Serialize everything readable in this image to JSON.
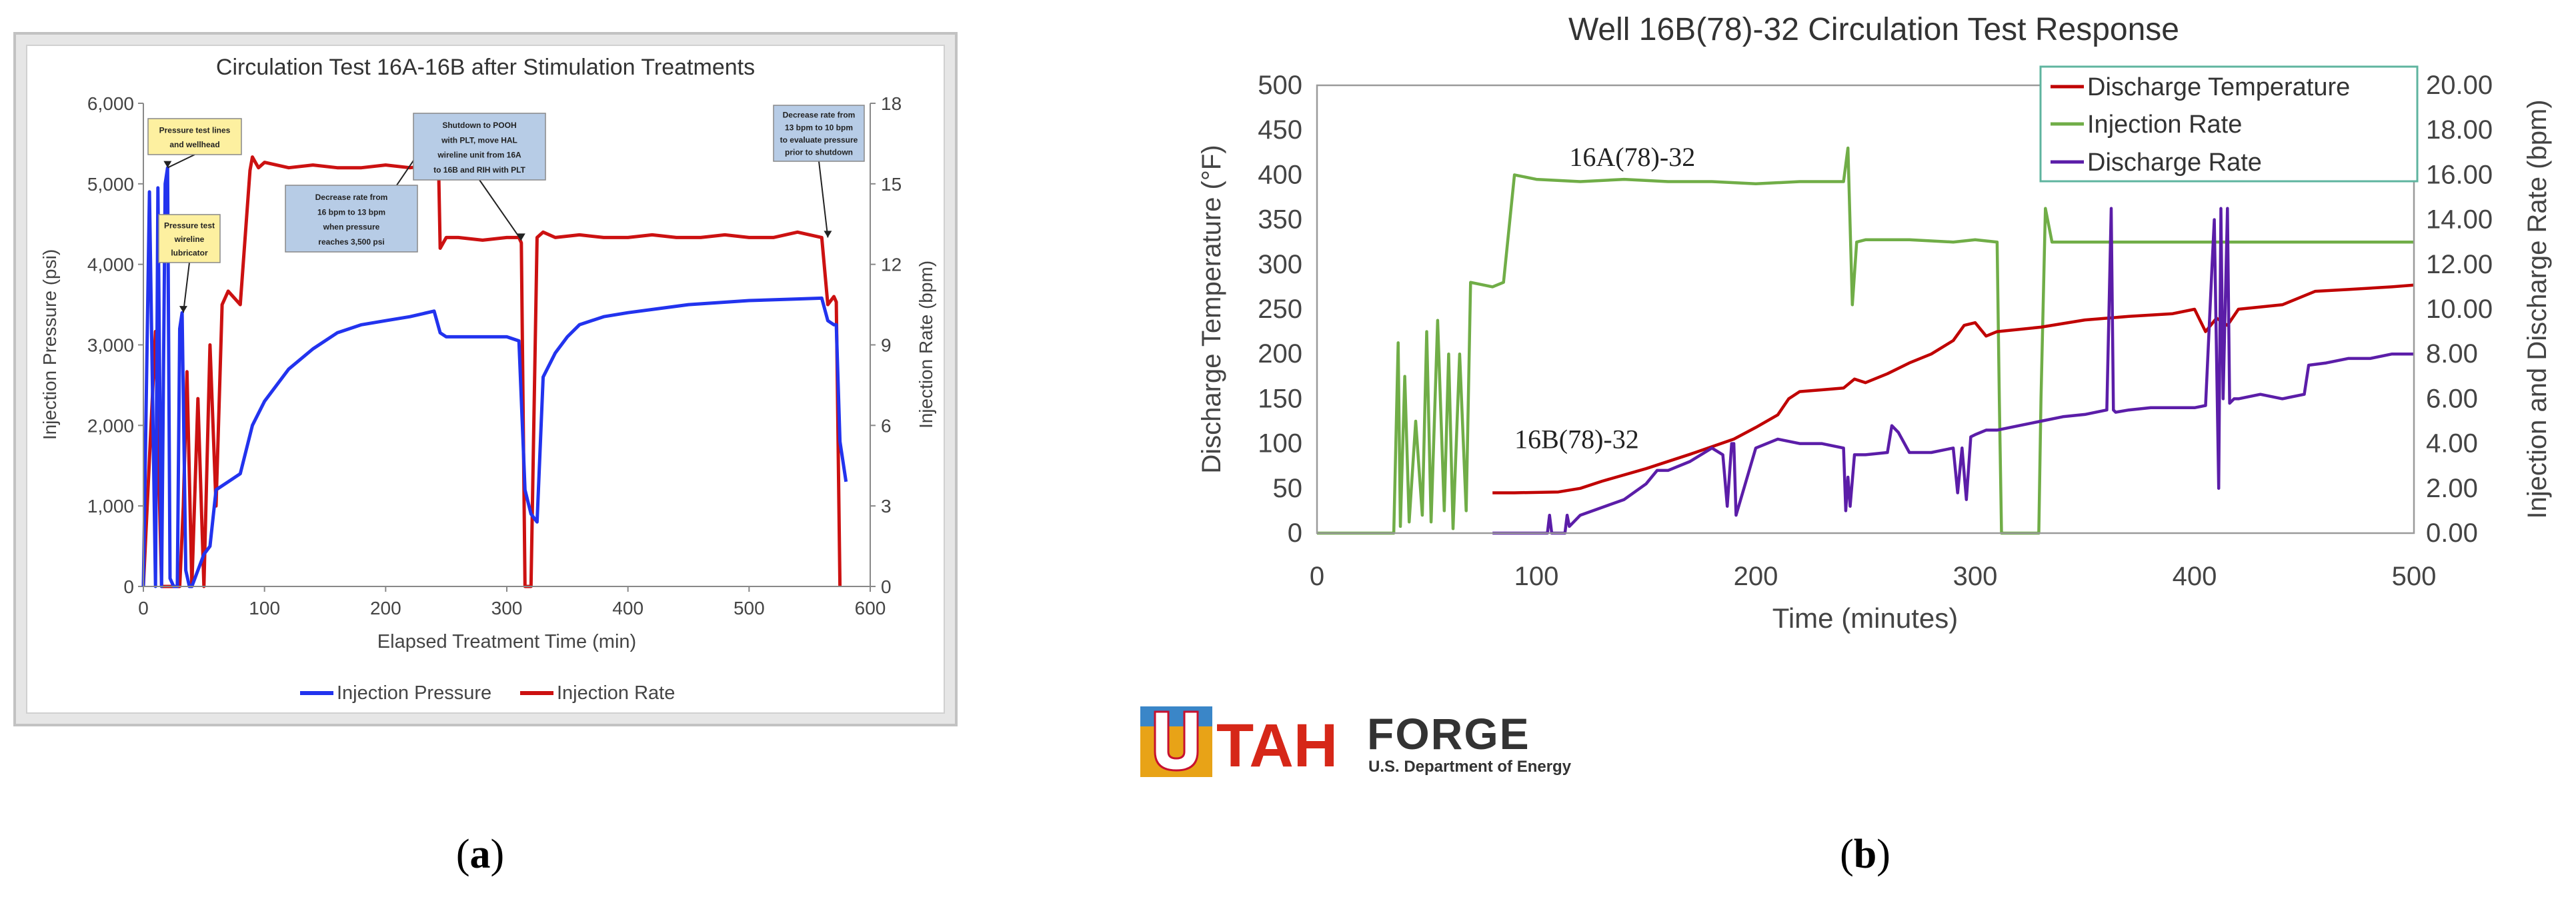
{
  "panels": [
    {
      "label_open": "(",
      "label_letter": "a",
      "label_close": ")"
    },
    {
      "label_open": "(",
      "label_letter": "b",
      "label_close": ")"
    }
  ],
  "logo": {
    "main_u": "U",
    "main_tah": "TAH",
    "main_forge": "FORGE",
    "sub": "U.S. Department of Energy"
  },
  "chart_data": [
    {
      "type": "line",
      "title": "Circulation Test 16A-16B after Stimulation Treatments",
      "xlabel": "Elapsed Treatment Time (min)",
      "ylabel": "Injection Pressure (psi)",
      "y2label": "Injection Rate (bpm)",
      "xlim": [
        0,
        600
      ],
      "ylim": [
        0,
        6000
      ],
      "y2lim": [
        0,
        18
      ],
      "x_ticks": [
        "0",
        "100",
        "200",
        "300",
        "400",
        "500",
        "600"
      ],
      "y_ticks": [
        "0",
        "1,000",
        "2,000",
        "3,000",
        "4,000",
        "5,000",
        "6,000"
      ],
      "y2_ticks": [
        "0",
        "3",
        "6",
        "9",
        "12",
        "15",
        "18"
      ],
      "legend_position": "bottom",
      "legend": [
        "Injection Pressure",
        "Injection Rate"
      ],
      "colors": {
        "pressure": "#2233ee",
        "rate": "#cc1111",
        "frame": "#c8c8c8",
        "callout_yellow": "#fdf0a0",
        "callout_blue": "#b7cce6"
      },
      "series": [
        {
          "name": "Injection Pressure",
          "axis": "left",
          "x": [
            0,
            5,
            10,
            12,
            15,
            18,
            20,
            22,
            25,
            28,
            30,
            32,
            35,
            38,
            40,
            45,
            50,
            55,
            60,
            70,
            80,
            90,
            100,
            120,
            140,
            160,
            180,
            200,
            220,
            240,
            245,
            250,
            260,
            280,
            300,
            310,
            315,
            320,
            325,
            330,
            340,
            350,
            360,
            380,
            400,
            450,
            500,
            540,
            560,
            565,
            570,
            572,
            575,
            580
          ],
          "y": [
            0,
            4900,
            0,
            4950,
            0,
            5000,
            5200,
            100,
            0,
            0,
            3200,
            3400,
            200,
            0,
            0,
            200,
            400,
            500,
            1200,
            1300,
            1400,
            2000,
            2300,
            2700,
            2950,
            3150,
            3250,
            3300,
            3350,
            3420,
            3150,
            3100,
            3100,
            3100,
            3100,
            3050,
            1200,
            900,
            800,
            2600,
            2900,
            3100,
            3250,
            3350,
            3400,
            3500,
            3550,
            3570,
            3580,
            3300,
            3250,
            3250,
            1800,
            1300
          ]
        },
        {
          "name": "Injection Rate",
          "axis": "right",
          "x": [
            0,
            10,
            15,
            20,
            25,
            30,
            33,
            36,
            40,
            45,
            50,
            55,
            60,
            65,
            70,
            80,
            88,
            90,
            95,
            100,
            120,
            140,
            160,
            180,
            200,
            220,
            240,
            243,
            245,
            250,
            260,
            280,
            300,
            310,
            312,
            315,
            318,
            320,
            325,
            330,
            340,
            360,
            380,
            400,
            420,
            440,
            460,
            480,
            500,
            520,
            540,
            560,
            565,
            570,
            572,
            575
          ],
          "y": [
            0,
            9.5,
            0,
            0,
            0,
            0,
            3,
            8,
            0,
            7,
            0,
            9,
            3,
            10.5,
            11,
            10.5,
            15.5,
            16,
            15.6,
            15.8,
            15.6,
            15.7,
            15.6,
            15.6,
            15.7,
            15.6,
            15.7,
            17.2,
            12.6,
            13,
            13,
            12.9,
            13,
            13,
            12.8,
            0,
            0,
            0,
            13,
            13.2,
            13,
            13.1,
            13,
            13,
            13.1,
            13,
            13,
            13.1,
            13,
            13,
            13.2,
            13,
            10.5,
            10.8,
            10.6,
            0
          ]
        }
      ],
      "annotations": [
        {
          "text": [
            "Pressure test lines",
            "and wellhead"
          ],
          "at_x": 20,
          "at_y": 5200,
          "style": "yellow"
        },
        {
          "text": [
            "Pressure test",
            "wireline",
            "lubricator"
          ],
          "at_x": 33,
          "at_y": 3400,
          "style": "yellow"
        },
        {
          "text": [
            "Decrease rate from",
            "16 bpm to 13 bpm",
            "when pressure",
            "reaches 3,500 psi"
          ],
          "at_x": 243,
          "at_y": 5000,
          "style": "blue"
        },
        {
          "text": [
            "Shutdown to POOH",
            "with PLT, move HAL",
            "wireline unit from 16A",
            "to 16B and RIH with PLT"
          ],
          "at_x": 312,
          "at_y": 4400,
          "style": "blue"
        },
        {
          "text": [
            "Decrease rate from",
            "13 bpm to 10 bpm",
            "to evaluate pressure",
            "prior to shutdown"
          ],
          "at_x": 565,
          "at_y": 4400,
          "style": "blue"
        }
      ]
    },
    {
      "type": "line",
      "title": "Well 16B(78)-32 Circulation Test Response",
      "xlabel": "Time (minutes)",
      "ylabel": "Discharge Temperature (°F)",
      "y2label": "Injection and Discharge Rate (bpm)",
      "xlim": [
        0,
        500
      ],
      "ylim": [
        0,
        500
      ],
      "y2lim": [
        0,
        20
      ],
      "x_ticks": [
        "0",
        "100",
        "200",
        "300",
        "400",
        "500"
      ],
      "y_ticks": [
        "0",
        "50",
        "100",
        "150",
        "200",
        "250",
        "300",
        "350",
        "400",
        "450",
        "500"
      ],
      "y2_ticks": [
        "0.00",
        "2.00",
        "4.00",
        "6.00",
        "8.00",
        "10.00",
        "12.00",
        "14.00",
        "16.00",
        "18.00",
        "20.00"
      ],
      "legend_position": "top-right",
      "legend": [
        "Discharge Temperature",
        "Injection Rate",
        "Discharge Rate"
      ],
      "colors": {
        "temperature": "#c00000",
        "injection": "#70ad47",
        "discharge": "#5b1da8",
        "legend_border": "#5fb49f"
      },
      "series": [
        {
          "name": "Discharge Temperature",
          "axis": "left",
          "x": [
            80,
            90,
            110,
            120,
            130,
            150,
            170,
            190,
            200,
            210,
            215,
            220,
            230,
            240,
            245,
            250,
            260,
            270,
            280,
            290,
            295,
            300,
            305,
            310,
            330,
            350,
            370,
            390,
            400,
            405,
            410,
            415,
            420,
            440,
            450,
            455,
            470,
            490,
            500
          ],
          "y": [
            45,
            45,
            46,
            50,
            58,
            72,
            88,
            105,
            118,
            132,
            150,
            158,
            160,
            162,
            172,
            168,
            178,
            190,
            200,
            215,
            232,
            235,
            220,
            225,
            230,
            238,
            242,
            245,
            250,
            225,
            240,
            232,
            250,
            255,
            265,
            270,
            272,
            275,
            277
          ]
        },
        {
          "name": "Injection Rate",
          "axis": "right",
          "x": [
            0,
            35,
            37,
            38,
            40,
            42,
            45,
            48,
            50,
            52,
            55,
            58,
            60,
            62,
            65,
            68,
            70,
            80,
            85,
            90,
            100,
            120,
            140,
            160,
            180,
            200,
            220,
            240,
            242,
            244,
            246,
            250,
            270,
            290,
            300,
            310,
            311,
            312,
            315,
            325,
            329,
            330,
            332,
            335,
            350,
            400,
            450,
            480,
            500
          ],
          "y": [
            0,
            0,
            8.5,
            0.3,
            7,
            0.5,
            5,
            0.8,
            9,
            0.5,
            9.5,
            1,
            8,
            0.2,
            8,
            1,
            11.2,
            11,
            11.2,
            16,
            15.8,
            15.7,
            15.8,
            15.7,
            15.7,
            15.6,
            15.7,
            15.7,
            17.2,
            10.2,
            13,
            13.1,
            13.1,
            13,
            13.1,
            13,
            6,
            0,
            0,
            0,
            0,
            6,
            14.5,
            13,
            13,
            13,
            13,
            13,
            13
          ]
        },
        {
          "name": "Discharge Rate",
          "axis": "right",
          "x": [
            80,
            105,
            106,
            107,
            113,
            114,
            115,
            120,
            140,
            150,
            155,
            160,
            170,
            180,
            185,
            187,
            189,
            190,
            191,
            200,
            210,
            220,
            230,
            240,
            241,
            242,
            243,
            245,
            250,
            260,
            262,
            265,
            270,
            280,
            290,
            292,
            294,
            296,
            298,
            300,
            305,
            310,
            320,
            330,
            340,
            350,
            360,
            362,
            363,
            364,
            370,
            380,
            390,
            400,
            405,
            408,
            409,
            410,
            411,
            412,
            413,
            415,
            416,
            418,
            420,
            430,
            440,
            450,
            452,
            460,
            470,
            480,
            490,
            500
          ],
          "y": [
            0,
            0,
            0.8,
            0,
            0,
            0.8,
            0.3,
            0.8,
            1.5,
            2.2,
            2.8,
            2.8,
            3.2,
            3.8,
            3.5,
            1.2,
            4,
            4,
            0.8,
            3.8,
            4.2,
            4,
            4,
            3.8,
            1,
            2.5,
            1.2,
            3.5,
            3.5,
            3.6,
            4.8,
            4.5,
            3.6,
            3.6,
            3.8,
            1.8,
            3.8,
            1.5,
            4.3,
            4.4,
            4.6,
            4.6,
            4.8,
            5,
            5.2,
            5.3,
            5.5,
            14.5,
            5.5,
            5.4,
            5.5,
            5.6,
            5.6,
            5.6,
            5.7,
            12,
            14,
            8,
            2,
            14.5,
            6,
            14.5,
            5.8,
            6,
            6,
            6.2,
            6,
            6.2,
            7.5,
            7.6,
            7.8,
            7.8,
            8,
            8
          ]
        }
      ],
      "annotations": [
        {
          "text": "16A(78)-32",
          "at_x": 115,
          "at_y": 410
        },
        {
          "text": "16B(78)-32",
          "at_x": 90,
          "at_y": 95
        }
      ]
    }
  ]
}
